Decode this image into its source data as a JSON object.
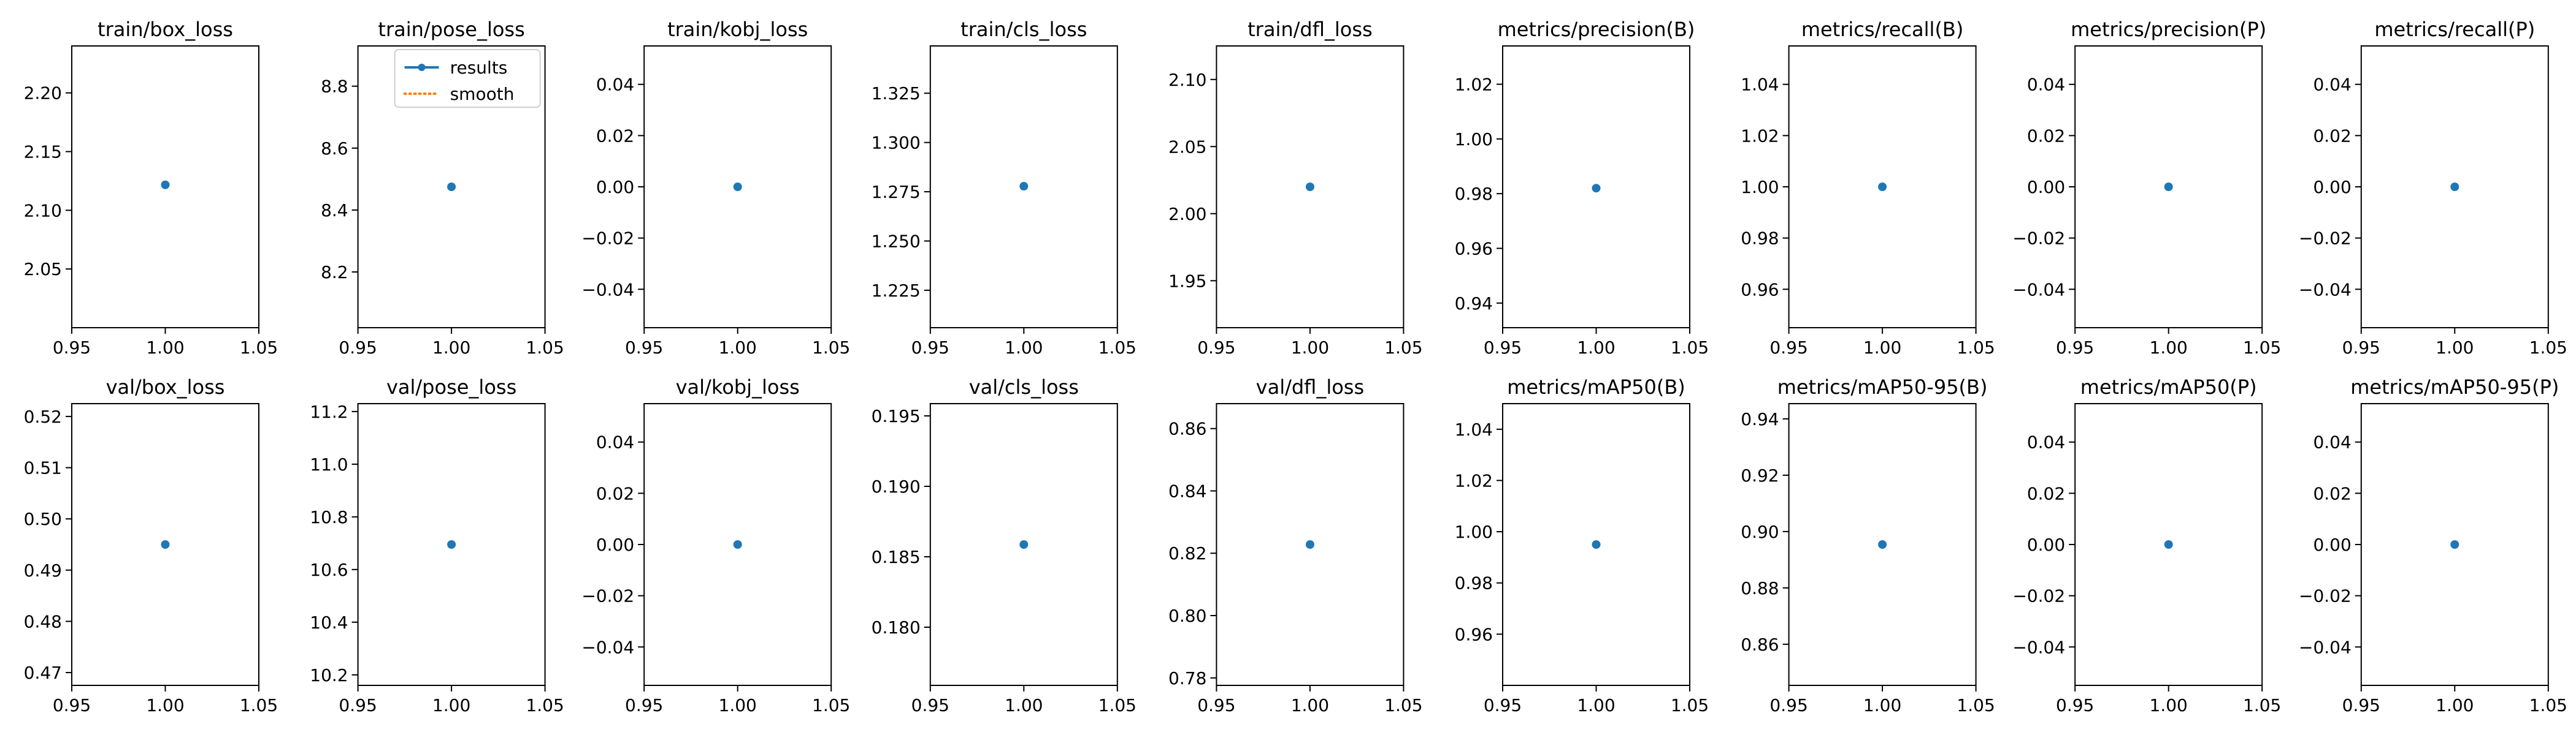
{
  "legend": {
    "entries": [
      {
        "label": "results",
        "color": "#1f77b4",
        "style": "solid-with-marker"
      },
      {
        "label": "smooth",
        "color": "#ff7f0e",
        "style": "dotted"
      }
    ]
  },
  "chart_data": [
    {
      "type": "line",
      "title": "train/box_loss",
      "x": [
        1.0
      ],
      "y": [
        2.1217
      ],
      "xlim": [
        0.95,
        1.05
      ],
      "ylim": [
        2.0,
        2.24
      ],
      "yticks": [
        2.05,
        2.1,
        2.15,
        2.2
      ],
      "ytick_labels": [
        "2.05",
        "2.10",
        "2.15",
        "2.20"
      ],
      "xticks": [
        0.95,
        1.0,
        1.05
      ],
      "xtick_labels": [
        "0.95",
        "1.00",
        "1.05"
      ],
      "legend": false
    },
    {
      "type": "line",
      "title": "train/pose_loss",
      "x": [
        1.0
      ],
      "y": [
        8.475
      ],
      "xlim": [
        0.95,
        1.05
      ],
      "ylim": [
        8.02,
        8.93
      ],
      "yticks": [
        8.2,
        8.4,
        8.6,
        8.8
      ],
      "ytick_labels": [
        "8.2",
        "8.4",
        "8.6",
        "8.8"
      ],
      "xticks": [
        0.95,
        1.0,
        1.05
      ],
      "xtick_labels": [
        "0.95",
        "1.00",
        "1.05"
      ],
      "legend": true,
      "legend_position": "upper-right"
    },
    {
      "type": "line",
      "title": "train/kobj_loss",
      "x": [
        1.0
      ],
      "y": [
        0.0
      ],
      "xlim": [
        0.95,
        1.05
      ],
      "ylim": [
        -0.055,
        0.055
      ],
      "yticks": [
        -0.04,
        -0.02,
        0.0,
        0.02,
        0.04
      ],
      "ytick_labels": [
        "−0.04",
        "−0.02",
        "0.00",
        "0.02",
        "0.04"
      ],
      "xticks": [
        0.95,
        1.0,
        1.05
      ],
      "xtick_labels": [
        "0.95",
        "1.00",
        "1.05"
      ],
      "legend": false
    },
    {
      "type": "line",
      "title": "train/cls_loss",
      "x": [
        1.0
      ],
      "y": [
        1.2778
      ],
      "xlim": [
        0.95,
        1.05
      ],
      "ylim": [
        1.206,
        1.349
      ],
      "yticks": [
        1.225,
        1.25,
        1.275,
        1.3,
        1.325
      ],
      "ytick_labels": [
        "1.225",
        "1.250",
        "1.275",
        "1.300",
        "1.325"
      ],
      "xticks": [
        0.95,
        1.0,
        1.05
      ],
      "xtick_labels": [
        "0.95",
        "1.00",
        "1.05"
      ],
      "legend": false
    },
    {
      "type": "line",
      "title": "train/dfl_loss",
      "x": [
        1.0
      ],
      "y": [
        2.02
      ],
      "xlim": [
        0.95,
        1.05
      ],
      "ylim": [
        1.915,
        2.125
      ],
      "yticks": [
        1.95,
        2.0,
        2.05,
        2.1
      ],
      "ytick_labels": [
        "1.95",
        "2.00",
        "2.05",
        "2.10"
      ],
      "xticks": [
        0.95,
        1.0,
        1.05
      ],
      "xtick_labels": [
        "0.95",
        "1.00",
        "1.05"
      ],
      "legend": false
    },
    {
      "type": "line",
      "title": "metrics/precision(B)",
      "x": [
        1.0
      ],
      "y": [
        0.982
      ],
      "xlim": [
        0.95,
        1.05
      ],
      "ylim": [
        0.931,
        1.034
      ],
      "yticks": [
        0.94,
        0.96,
        0.98,
        1.0,
        1.02
      ],
      "ytick_labels": [
        "0.94",
        "0.96",
        "0.98",
        "1.00",
        "1.02"
      ],
      "xticks": [
        0.95,
        1.0,
        1.05
      ],
      "xtick_labels": [
        "0.95",
        "1.00",
        "1.05"
      ],
      "legend": false
    },
    {
      "type": "line",
      "title": "metrics/recall(B)",
      "x": [
        1.0
      ],
      "y": [
        1.0
      ],
      "xlim": [
        0.95,
        1.05
      ],
      "ylim": [
        0.945,
        1.055
      ],
      "yticks": [
        0.96,
        0.98,
        1.0,
        1.02,
        1.04
      ],
      "ytick_labels": [
        "0.96",
        "0.98",
        "1.00",
        "1.02",
        "1.04"
      ],
      "xticks": [
        0.95,
        1.0,
        1.05
      ],
      "xtick_labels": [
        "0.95",
        "1.00",
        "1.05"
      ],
      "legend": false
    },
    {
      "type": "line",
      "title": "metrics/precision(P)",
      "x": [
        1.0
      ],
      "y": [
        0.0
      ],
      "xlim": [
        0.95,
        1.05
      ],
      "ylim": [
        -0.055,
        0.055
      ],
      "yticks": [
        -0.04,
        -0.02,
        0.0,
        0.02,
        0.04
      ],
      "ytick_labels": [
        "−0.04",
        "−0.02",
        "0.00",
        "0.02",
        "0.04"
      ],
      "xticks": [
        0.95,
        1.0,
        1.05
      ],
      "xtick_labels": [
        "0.95",
        "1.00",
        "1.05"
      ],
      "legend": false
    },
    {
      "type": "line",
      "title": "metrics/recall(P)",
      "x": [
        1.0
      ],
      "y": [
        0.0
      ],
      "xlim": [
        0.95,
        1.05
      ],
      "ylim": [
        -0.055,
        0.055
      ],
      "yticks": [
        -0.04,
        -0.02,
        0.0,
        0.02,
        0.04
      ],
      "ytick_labels": [
        "−0.04",
        "−0.02",
        "0.00",
        "0.02",
        "0.04"
      ],
      "xticks": [
        0.95,
        1.0,
        1.05
      ],
      "xtick_labels": [
        "0.95",
        "1.00",
        "1.05"
      ],
      "legend": false
    },
    {
      "type": "line",
      "title": "val/box_loss",
      "x": [
        1.0
      ],
      "y": [
        0.495
      ],
      "xlim": [
        0.95,
        1.05
      ],
      "ylim": [
        0.4675,
        0.5225
      ],
      "yticks": [
        0.47,
        0.48,
        0.49,
        0.5,
        0.51,
        0.52
      ],
      "ytick_labels": [
        "0.47",
        "0.48",
        "0.49",
        "0.50",
        "0.51",
        "0.52"
      ],
      "xticks": [
        0.95,
        1.0,
        1.05
      ],
      "xtick_labels": [
        "0.95",
        "1.00",
        "1.05"
      ],
      "legend": false
    },
    {
      "type": "line",
      "title": "val/pose_loss",
      "x": [
        1.0
      ],
      "y": [
        10.695
      ],
      "xlim": [
        0.95,
        1.05
      ],
      "ylim": [
        10.16,
        11.23
      ],
      "yticks": [
        10.2,
        10.4,
        10.6,
        10.8,
        11.0,
        11.2
      ],
      "ytick_labels": [
        "10.2",
        "10.4",
        "10.6",
        "10.8",
        "11.0",
        "11.2"
      ],
      "xticks": [
        0.95,
        1.0,
        1.05
      ],
      "xtick_labels": [
        "0.95",
        "1.00",
        "1.05"
      ],
      "legend": false
    },
    {
      "type": "line",
      "title": "val/kobj_loss",
      "x": [
        1.0
      ],
      "y": [
        0.0
      ],
      "xlim": [
        0.95,
        1.05
      ],
      "ylim": [
        -0.055,
        0.055
      ],
      "yticks": [
        -0.04,
        -0.02,
        0.0,
        0.02,
        0.04
      ],
      "ytick_labels": [
        "−0.04",
        "−0.02",
        "0.00",
        "0.02",
        "0.04"
      ],
      "xticks": [
        0.95,
        1.0,
        1.05
      ],
      "xtick_labels": [
        "0.95",
        "1.00",
        "1.05"
      ],
      "legend": false
    },
    {
      "type": "line",
      "title": "val/cls_loss",
      "x": [
        1.0
      ],
      "y": [
        0.18587
      ],
      "xlim": [
        0.95,
        1.05
      ],
      "ylim": [
        0.17587,
        0.19587
      ],
      "yticks": [
        0.18,
        0.185,
        0.19,
        0.195
      ],
      "ytick_labels": [
        "0.180",
        "0.185",
        "0.190",
        "0.195"
      ],
      "xticks": [
        0.95,
        1.0,
        1.05
      ],
      "xtick_labels": [
        "0.95",
        "1.00",
        "1.05"
      ],
      "legend": false
    },
    {
      "type": "line",
      "title": "val/dfl_loss",
      "x": [
        1.0
      ],
      "y": [
        0.8228
      ],
      "xlim": [
        0.95,
        1.05
      ],
      "ylim": [
        0.7776,
        0.868
      ],
      "yticks": [
        0.78,
        0.8,
        0.82,
        0.84,
        0.86
      ],
      "ytick_labels": [
        "0.78",
        "0.80",
        "0.82",
        "0.84",
        "0.86"
      ],
      "xticks": [
        0.95,
        1.0,
        1.05
      ],
      "xtick_labels": [
        "0.95",
        "1.00",
        "1.05"
      ],
      "legend": false
    },
    {
      "type": "line",
      "title": "metrics/mAP50(B)",
      "x": [
        1.0
      ],
      "y": [
        0.995
      ],
      "xlim": [
        0.95,
        1.05
      ],
      "ylim": [
        0.94,
        1.05
      ],
      "yticks": [
        0.96,
        0.98,
        1.0,
        1.02,
        1.04
      ],
      "ytick_labels": [
        "0.96",
        "0.98",
        "1.00",
        "1.02",
        "1.04"
      ],
      "xticks": [
        0.95,
        1.0,
        1.05
      ],
      "xtick_labels": [
        "0.95",
        "1.00",
        "1.05"
      ],
      "legend": false
    },
    {
      "type": "line",
      "title": "metrics/mAP50-95(B)",
      "x": [
        1.0
      ],
      "y": [
        0.8954
      ],
      "xlim": [
        0.95,
        1.05
      ],
      "ylim": [
        0.8454,
        0.9454
      ],
      "yticks": [
        0.86,
        0.88,
        0.9,
        0.92,
        0.94
      ],
      "ytick_labels": [
        "0.86",
        "0.88",
        "0.90",
        "0.92",
        "0.94"
      ],
      "xticks": [
        0.95,
        1.0,
        1.05
      ],
      "xtick_labels": [
        "0.95",
        "1.00",
        "1.05"
      ],
      "legend": false
    },
    {
      "type": "line",
      "title": "metrics/mAP50(P)",
      "x": [
        1.0
      ],
      "y": [
        0.0
      ],
      "xlim": [
        0.95,
        1.05
      ],
      "ylim": [
        -0.055,
        0.055
      ],
      "yticks": [
        -0.04,
        -0.02,
        0.0,
        0.02,
        0.04
      ],
      "ytick_labels": [
        "−0.04",
        "−0.02",
        "0.00",
        "0.02",
        "0.04"
      ],
      "xticks": [
        0.95,
        1.0,
        1.05
      ],
      "xtick_labels": [
        "0.95",
        "1.00",
        "1.05"
      ],
      "legend": false
    },
    {
      "type": "line",
      "title": "metrics/mAP50-95(P)",
      "x": [
        1.0
      ],
      "y": [
        0.0
      ],
      "xlim": [
        0.95,
        1.05
      ],
      "ylim": [
        -0.055,
        0.055
      ],
      "yticks": [
        -0.04,
        -0.02,
        0.0,
        0.02,
        0.04
      ],
      "ytick_labels": [
        "−0.04",
        "−0.02",
        "0.00",
        "0.02",
        "0.04"
      ],
      "xticks": [
        0.95,
        1.0,
        1.05
      ],
      "xtick_labels": [
        "0.95",
        "1.00",
        "1.05"
      ],
      "legend": false
    }
  ]
}
